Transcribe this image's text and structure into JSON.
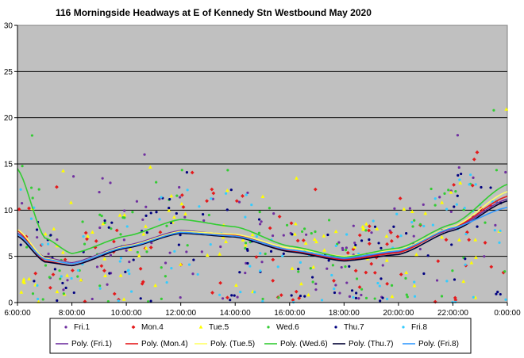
{
  "chart_data": {
    "type": "scatter",
    "title": "116 Morningside  Headways  at E of Kennedy Stn Westbound May 2020",
    "xlabel": "",
    "ylabel": "",
    "x_range_hours": [
      6,
      24
    ],
    "ylim": [
      0,
      30
    ],
    "y_ticks": [
      "0",
      "5",
      "10",
      "15",
      "20",
      "25",
      "30"
    ],
    "x_ticks": [
      "6:00:00",
      "8:00:00",
      "10:00:00",
      "12:00:00",
      "14:00:00",
      "16:00:00",
      "18:00:00",
      "20:00:00",
      "22:00:00",
      "0:00:00"
    ],
    "grid": "horizontal",
    "plot_background": "#c0c0c0",
    "legend_position": "bottom",
    "series": [
      {
        "name": "Fri.1",
        "color": "#7030a0",
        "marker": "dot"
      },
      {
        "name": "Mon.4",
        "color": "#e41a1c",
        "marker": "diamond"
      },
      {
        "name": "Tue.5",
        "color": "#ffff00",
        "marker": "triangle"
      },
      {
        "name": "Wed.6",
        "color": "#33cc33",
        "marker": "dot"
      },
      {
        "name": "Thu.7",
        "color": "#000080",
        "marker": "dot"
      },
      {
        "name": "Fri.8",
        "color": "#33ccff",
        "marker": "dot"
      }
    ],
    "trendlines": [
      {
        "name": "Poly. (Fri.1)",
        "color": "#7030a0",
        "points": [
          [
            6,
            7.5
          ],
          [
            7,
            4.9
          ],
          [
            8,
            4.3
          ],
          [
            10,
            6.2
          ],
          [
            12,
            7.8
          ],
          [
            14,
            7.3
          ],
          [
            16,
            5.7
          ],
          [
            18,
            4.7
          ],
          [
            20,
            5.5
          ],
          [
            22,
            8.0
          ],
          [
            24,
            11.2
          ]
        ]
      },
      {
        "name": "Poly. (Mon.4)",
        "color": "#e41a1c",
        "points": [
          [
            6,
            7.8
          ],
          [
            7,
            4.5
          ],
          [
            8,
            4.0
          ],
          [
            10,
            5.9
          ],
          [
            12,
            7.6
          ],
          [
            14,
            7.3
          ],
          [
            16,
            5.6
          ],
          [
            18,
            4.6
          ],
          [
            20,
            5.4
          ],
          [
            22,
            8.1
          ],
          [
            24,
            11.5
          ]
        ]
      },
      {
        "name": "Poly. (Tue.5)",
        "color": "#ffff66",
        "points": [
          [
            6,
            7.9
          ],
          [
            7,
            4.8
          ],
          [
            8,
            4.2
          ],
          [
            10,
            6.1
          ],
          [
            12,
            7.7
          ],
          [
            14,
            7.4
          ],
          [
            16,
            5.9
          ],
          [
            18,
            5.0
          ],
          [
            20,
            5.7
          ],
          [
            22,
            8.2
          ],
          [
            24,
            12.0
          ]
        ]
      },
      {
        "name": "Poly. (Wed.6)",
        "color": "#33cc33",
        "points": [
          [
            6,
            14.5
          ],
          [
            7,
            7.0
          ],
          [
            8,
            5.3
          ],
          [
            10,
            7.2
          ],
          [
            12,
            9.0
          ],
          [
            14,
            8.2
          ],
          [
            16,
            6.1
          ],
          [
            18,
            4.9
          ],
          [
            20,
            5.9
          ],
          [
            22,
            8.5
          ],
          [
            24,
            12.8
          ]
        ]
      },
      {
        "name": "Poly. (Thu.7)",
        "color": "#000033",
        "points": [
          [
            6,
            7.2
          ],
          [
            7,
            4.4
          ],
          [
            8,
            4.0
          ],
          [
            10,
            5.9
          ],
          [
            12,
            7.5
          ],
          [
            14,
            7.1
          ],
          [
            16,
            5.5
          ],
          [
            18,
            4.5
          ],
          [
            20,
            5.2
          ],
          [
            22,
            7.8
          ],
          [
            24,
            11.0
          ]
        ]
      },
      {
        "name": "Poly. (Fri.8)",
        "color": "#3399ff",
        "points": [
          [
            6,
            7.4
          ],
          [
            7,
            4.7
          ],
          [
            8,
            4.2
          ],
          [
            10,
            6.0
          ],
          [
            12,
            7.6
          ],
          [
            14,
            7.2
          ],
          [
            16,
            5.7
          ],
          [
            18,
            4.8
          ],
          [
            20,
            5.6
          ],
          [
            22,
            8.1
          ],
          [
            24,
            10.3
          ]
        ]
      }
    ]
  }
}
